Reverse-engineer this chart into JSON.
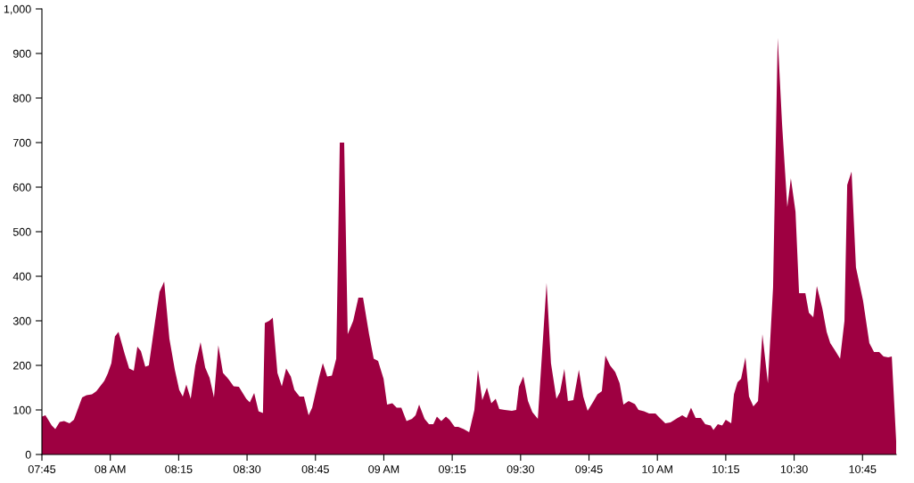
{
  "chart_data": {
    "type": "area",
    "x": [
      7.75,
      7.763,
      7.786,
      7.799,
      7.815,
      7.831,
      7.851,
      7.867,
      7.897,
      7.913,
      7.933,
      7.949,
      7.978,
      7.991,
      8.004,
      8.017,
      8.03,
      8.053,
      8.069,
      8.086,
      8.099,
      8.112,
      8.128,
      8.141,
      8.164,
      8.18,
      8.197,
      8.216,
      8.236,
      8.252,
      8.265,
      8.278,
      8.294,
      8.311,
      8.33,
      8.347,
      8.363,
      8.379,
      8.395,
      8.412,
      8.431,
      8.451,
      8.47,
      8.497,
      8.51,
      8.526,
      8.542,
      8.558,
      8.565,
      8.581,
      8.594,
      8.611,
      8.627,
      8.643,
      8.66,
      8.673,
      8.692,
      8.708,
      8.725,
      8.738,
      8.764,
      8.777,
      8.793,
      8.81,
      8.826,
      8.839,
      8.855,
      8.868,
      8.888,
      8.907,
      8.924,
      8.946,
      8.963,
      8.979,
      8.999,
      9.012,
      9.031,
      9.047,
      9.064,
      9.083,
      9.103,
      9.116,
      9.129,
      9.149,
      9.165,
      9.181,
      9.194,
      9.21,
      9.227,
      9.24,
      9.259,
      9.272,
      9.292,
      9.312,
      9.331,
      9.344,
      9.36,
      9.377,
      9.393,
      9.409,
      9.422,
      9.442,
      9.468,
      9.484,
      9.494,
      9.51,
      9.527,
      9.543,
      9.563,
      9.595,
      9.611,
      9.631,
      9.644,
      9.66,
      9.673,
      9.693,
      9.713,
      9.729,
      9.745,
      9.765,
      9.781,
      9.797,
      9.81,
      9.827,
      9.846,
      9.862,
      9.876,
      9.895,
      9.918,
      9.931,
      9.951,
      9.97,
      9.993,
      10.009,
      10.029,
      10.048,
      10.074,
      10.091,
      10.107,
      10.123,
      10.14,
      10.159,
      10.175,
      10.195,
      10.205,
      10.221,
      10.237,
      10.25,
      10.27,
      10.28,
      10.293,
      10.306,
      10.322,
      10.335,
      10.351,
      10.368,
      10.384,
      10.404,
      10.423,
      10.44,
      10.456,
      10.475,
      10.488,
      10.505,
      10.518,
      10.541,
      10.554,
      10.57,
      10.583,
      10.603,
      10.619,
      10.632,
      10.648,
      10.668,
      10.684,
      10.694,
      10.71,
      10.726,
      10.752,
      10.775,
      10.792,
      10.811,
      10.827,
      10.844,
      10.857,
      10.873
    ],
    "values": [
      85,
      88,
      65,
      57,
      73,
      75,
      70,
      78,
      128,
      133,
      135,
      142,
      165,
      182,
      205,
      265,
      275,
      225,
      193,
      188,
      242,
      232,
      197,
      200,
      300,
      365,
      388,
      260,
      190,
      145,
      130,
      157,
      125,
      200,
      252,
      195,
      172,
      128,
      245,
      183,
      170,
      153,
      152,
      125,
      117,
      138,
      97,
      93,
      295,
      300,
      307,
      183,
      153,
      193,
      175,
      145,
      130,
      130,
      88,
      105,
      175,
      205,
      175,
      177,
      215,
      700,
      700,
      270,
      300,
      352,
      352,
      270,
      215,
      210,
      170,
      112,
      115,
      105,
      105,
      75,
      80,
      88,
      112,
      80,
      68,
      68,
      85,
      75,
      85,
      78,
      62,
      62,
      57,
      50,
      100,
      190,
      122,
      150,
      115,
      125,
      102,
      100,
      98,
      100,
      152,
      175,
      120,
      95,
      80,
      385,
      205,
      125,
      140,
      192,
      120,
      122,
      190,
      130,
      98,
      118,
      135,
      142,
      222,
      200,
      185,
      160,
      112,
      120,
      113,
      100,
      97,
      92,
      92,
      82,
      70,
      72,
      82,
      88,
      82,
      105,
      82,
      82,
      68,
      65,
      55,
      68,
      65,
      78,
      70,
      135,
      162,
      170,
      218,
      130,
      108,
      120,
      270,
      160,
      375,
      935,
      740,
      555,
      620,
      545,
      362,
      362,
      318,
      308,
      378,
      328,
      275,
      250,
      235,
      215,
      300,
      605,
      635,
      420,
      345,
      250,
      230,
      230,
      220,
      218,
      220,
      30
    ],
    "color": "#9e0041",
    "xlim": [
      7.75,
      10.873
    ],
    "xticks": [
      {
        "value": 7.75,
        "label": "07:45"
      },
      {
        "value": 8,
        "label": "08 AM"
      },
      {
        "value": 8.25,
        "label": "08:15"
      },
      {
        "value": 8.5,
        "label": "08:30"
      },
      {
        "value": 8.75,
        "label": "08:45"
      },
      {
        "value": 9,
        "label": "09 AM"
      },
      {
        "value": 9.25,
        "label": "09:15"
      },
      {
        "value": 9.5,
        "label": "09:30"
      },
      {
        "value": 9.75,
        "label": "09:45"
      },
      {
        "value": 10,
        "label": "10 AM"
      },
      {
        "value": 10.25,
        "label": "10:15"
      },
      {
        "value": 10.5,
        "label": "10:30"
      },
      {
        "value": 10.75,
        "label": "10:45"
      }
    ],
    "ylim": [
      0,
      1000
    ],
    "yticks": [
      0,
      100,
      200,
      300,
      400,
      500,
      600,
      700,
      800,
      900,
      {
        "value": 1000,
        "label": "1,000"
      }
    ],
    "grid": false,
    "legend": false
  }
}
